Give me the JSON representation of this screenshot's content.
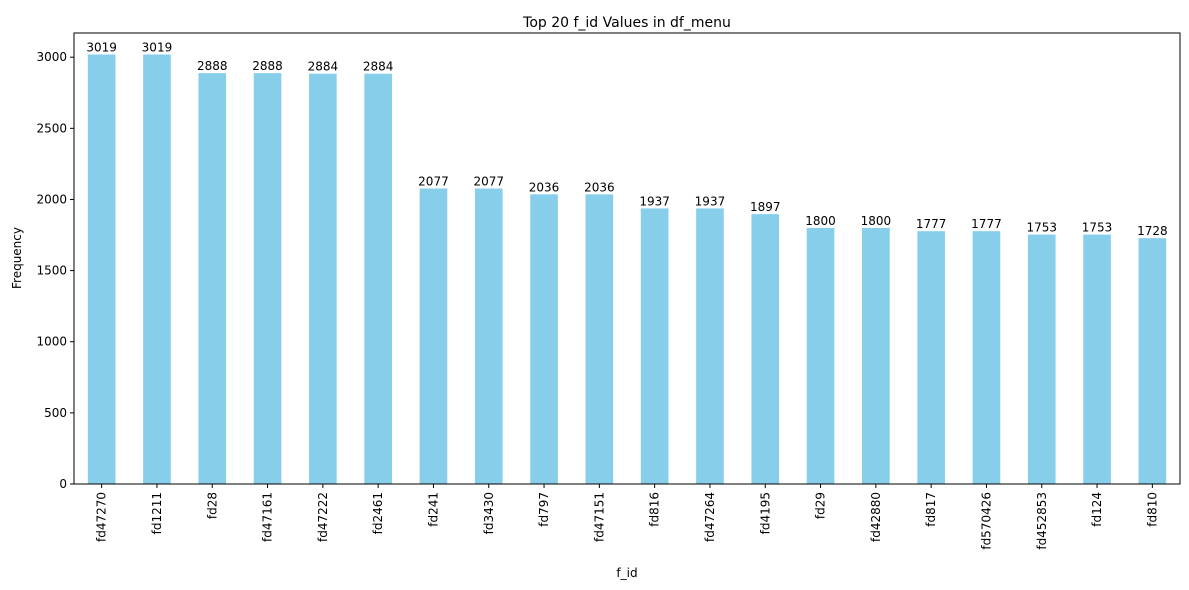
{
  "chart_data": {
    "type": "bar",
    "title": "Top 20 f_id Values in df_menu",
    "xlabel": "f_id",
    "ylabel": "Frequency",
    "categories": [
      "fd47270",
      "fd1211",
      "fd28",
      "fd47161",
      "fd47222",
      "fd2461",
      "fd241",
      "fd3430",
      "fd797",
      "fd47151",
      "fd816",
      "fd47264",
      "fd4195",
      "fd29",
      "fd42880",
      "fd817",
      "fd570426",
      "fd452853",
      "fd124",
      "fd810"
    ],
    "values": [
      3019,
      3019,
      2888,
      2888,
      2884,
      2884,
      2077,
      2077,
      2036,
      2036,
      1937,
      1937,
      1897,
      1800,
      1800,
      1777,
      1777,
      1753,
      1753,
      1728
    ],
    "ylim": [
      0,
      3170
    ],
    "yticks": [
      0,
      500,
      1000,
      1500,
      2000,
      2500,
      3000
    ],
    "bar_color": "#87CEEB",
    "grid": false,
    "legend": "none"
  }
}
